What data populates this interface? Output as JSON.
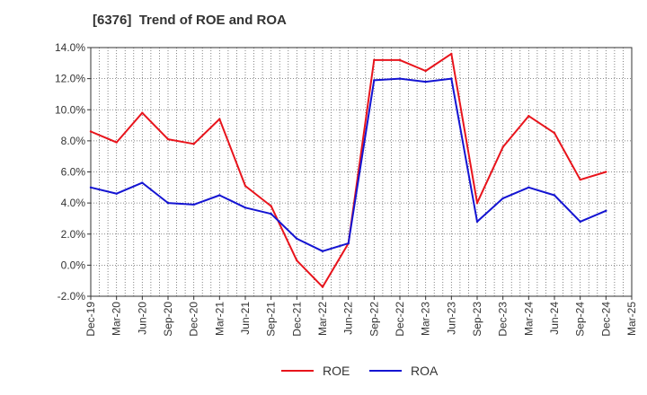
{
  "chart_data": {
    "type": "line",
    "title": "[6376]  Trend of ROE and ROA",
    "xlabel": "",
    "ylabel": "",
    "categories": [
      "Dec-19",
      "Mar-20",
      "Jun-20",
      "Sep-20",
      "Dec-20",
      "Mar-21",
      "Jun-21",
      "Sep-21",
      "Dec-21",
      "Mar-22",
      "Jun-22",
      "Sep-22",
      "Dec-22",
      "Mar-23",
      "Jun-23",
      "Sep-23",
      "Dec-23",
      "Mar-24",
      "Jun-24",
      "Sep-24",
      "Dec-24",
      "Mar-25"
    ],
    "y_ticks": [
      "-2.0%",
      "0.0%",
      "2.0%",
      "4.0%",
      "6.0%",
      "8.0%",
      "10.0%",
      "12.0%",
      "14.0%"
    ],
    "ylim": [
      -2,
      14
    ],
    "y_unit": "%",
    "grid": true,
    "legend_position": "bottom-center",
    "series": [
      {
        "name": "ROE",
        "color": "#e8141c",
        "values": [
          8.6,
          7.9,
          9.8,
          8.1,
          7.8,
          9.4,
          5.1,
          3.8,
          0.3,
          -1.4,
          1.4,
          13.2,
          13.2,
          12.5,
          13.6,
          4.0,
          7.6,
          9.6,
          8.5,
          5.5,
          6.0,
          null
        ]
      },
      {
        "name": "ROA",
        "color": "#1414d2",
        "values": [
          5.0,
          4.6,
          5.3,
          4.0,
          3.9,
          4.5,
          3.7,
          3.3,
          1.7,
          0.9,
          1.4,
          11.9,
          12.0,
          11.8,
          12.0,
          2.8,
          4.3,
          5.0,
          4.5,
          2.8,
          3.5,
          null
        ]
      }
    ]
  }
}
